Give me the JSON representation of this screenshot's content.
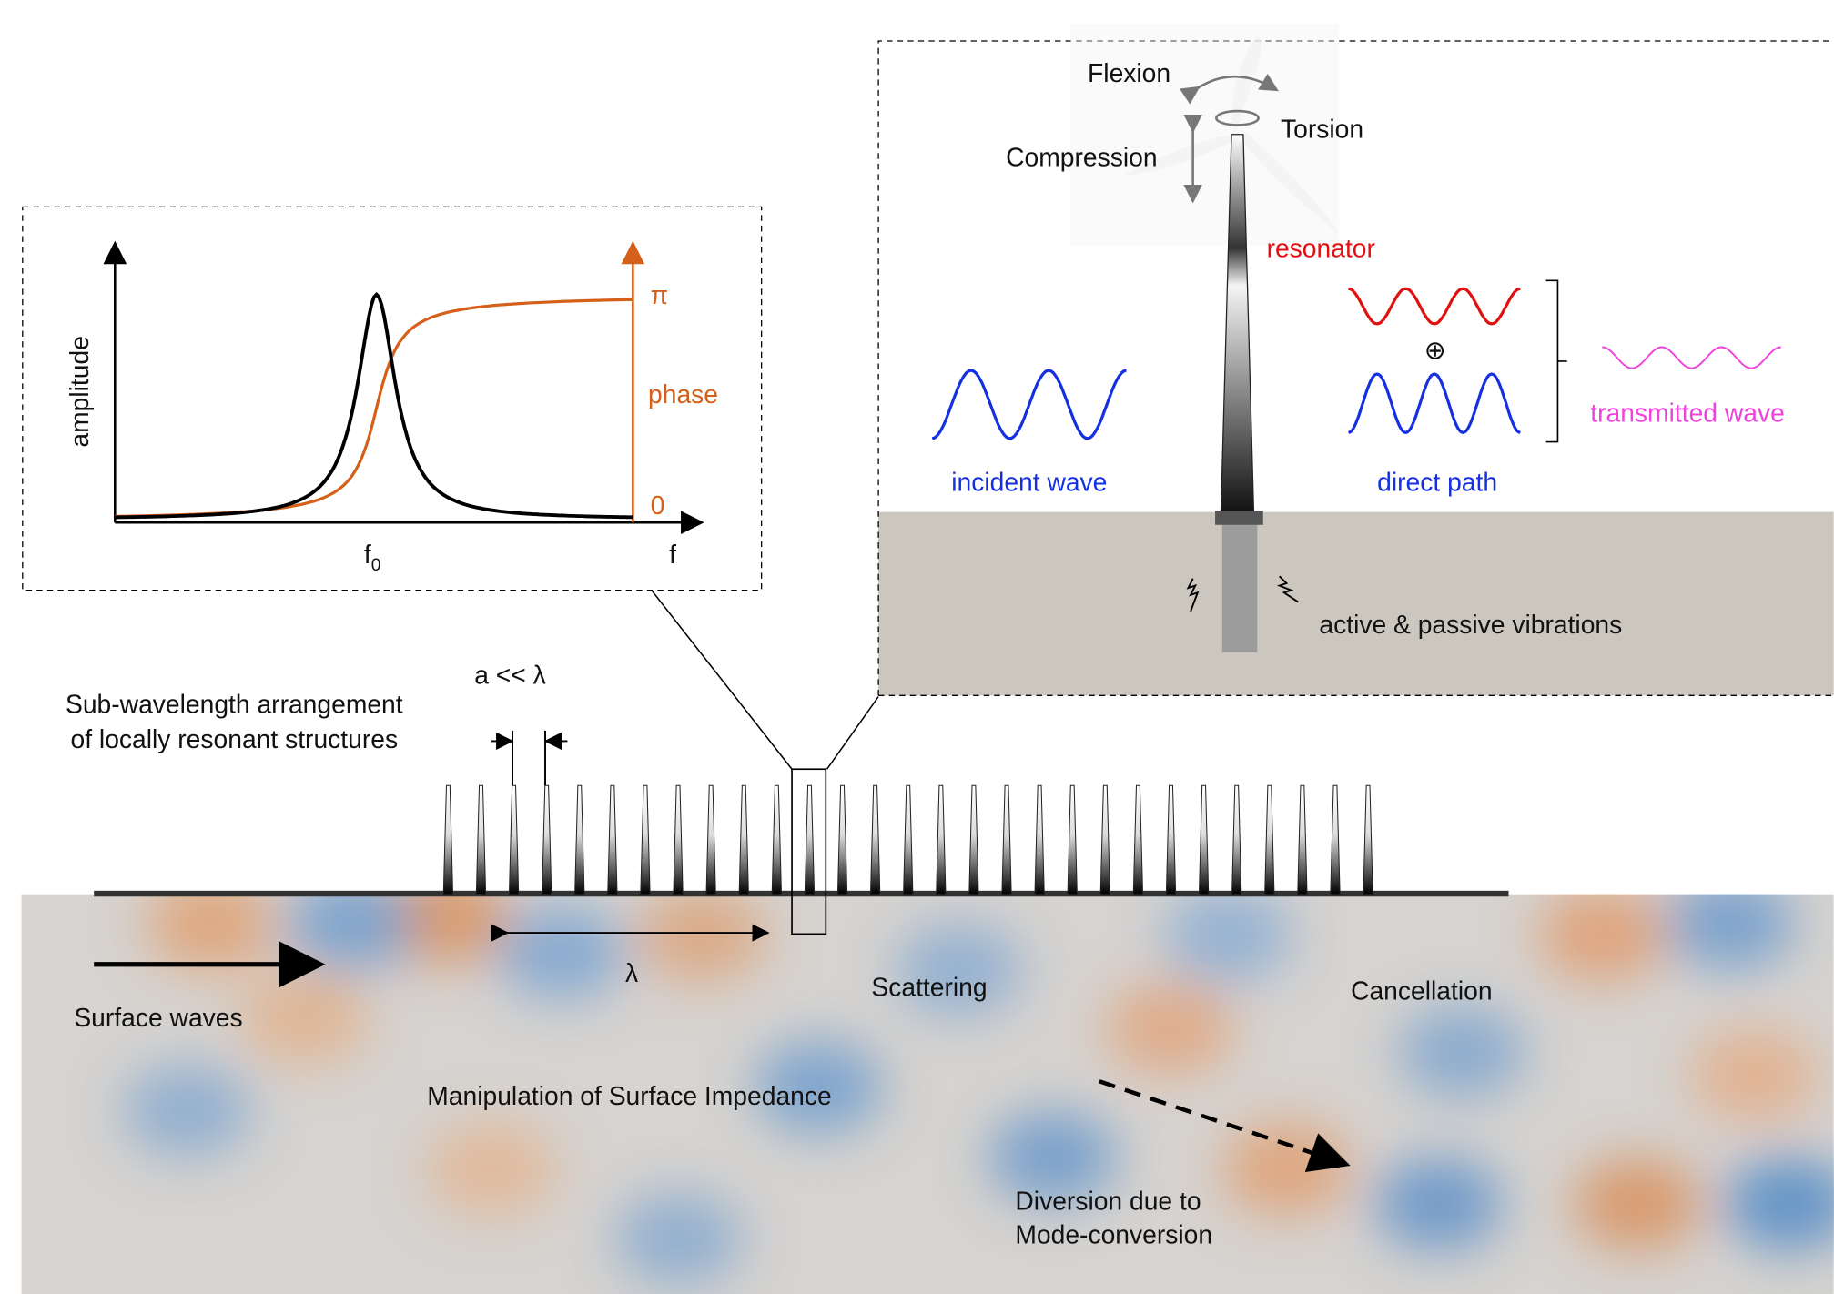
{
  "inset_plot": {
    "y_label": "amplitude",
    "phase_label": "phase",
    "phase_top": "π",
    "phase_bottom": "0",
    "x_label": "f",
    "f0_main": "f",
    "f0_sub": "0"
  },
  "resonator_panel": {
    "flexion": "Flexion",
    "torsion": "Torsion",
    "compression": "Compression",
    "resonator": "resonator",
    "incident_wave": "incident wave",
    "direct_path": "direct path",
    "transmitted_wave": "transmitted wave",
    "superposition": "⊕",
    "vibrations": "active & passive vibrations"
  },
  "array": {
    "spacing": "a << λ",
    "description": [
      "Sub-wavelength arrangement",
      "of locally resonant structures"
    ],
    "wavelength": "λ"
  },
  "field": {
    "surface_waves": "Surface waves",
    "scattering": "Scattering",
    "cancellation": "Cancellation",
    "impedance": "Manipulation of Surface Impedance",
    "diversion": [
      "Diversion due to",
      "Mode-conversion"
    ]
  }
}
